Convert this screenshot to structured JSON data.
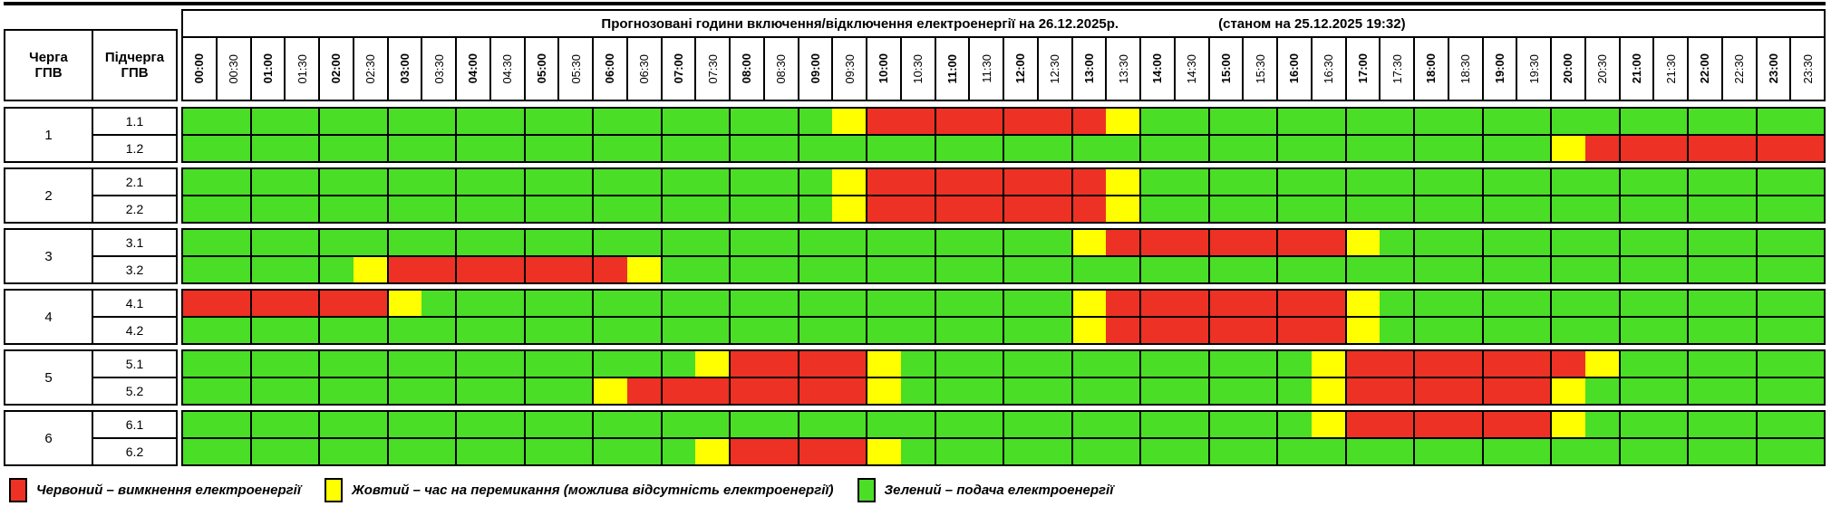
{
  "title": {
    "main": "Прогнозовані години включення/відключення електроенергії на 26.12.2025р.",
    "status": "(станом на 25.12.2025 19:32)"
  },
  "columns": {
    "queue_line1": "Черга",
    "queue_line2": "ГПВ",
    "subqueue_line1": "Підчерга",
    "subqueue_line2": "ГПВ"
  },
  "times": [
    "00:00",
    "00:30",
    "01:00",
    "01:30",
    "02:00",
    "02:30",
    "03:00",
    "03:30",
    "04:00",
    "04:30",
    "05:00",
    "05:30",
    "06:00",
    "06:30",
    "07:00",
    "07:30",
    "08:00",
    "08:30",
    "09:00",
    "09:30",
    "10:00",
    "10:30",
    "11:00",
    "11:30",
    "12:00",
    "12:30",
    "13:00",
    "13:30",
    "14:00",
    "14:30",
    "15:00",
    "15:30",
    "16:00",
    "16:30",
    "17:00",
    "17:30",
    "18:00",
    "18:30",
    "19:00",
    "19:30",
    "20:00",
    "20:30",
    "21:00",
    "21:30",
    "22:00",
    "22:30",
    "23:00",
    "23:30"
  ],
  "groups": [
    {
      "queue": "1",
      "rows": [
        {
          "label": "1.1",
          "slots": "GGGGGGGGGGGGGGGGGGGYRRRRRRRYGGGGGGGGGGGGGGGGGGGG"
        },
        {
          "label": "1.2",
          "slots": "GGGGGGGGGGGGGGGGGGGGGGGGGGGGGGGGGGGGGGGGYRRRRRRR"
        }
      ]
    },
    {
      "queue": "2",
      "rows": [
        {
          "label": "2.1",
          "slots": "GGGGGGGGGGGGGGGGGGGYRRRRRRRYGGGGGGGGGGGGGGGGGGGG"
        },
        {
          "label": "2.2",
          "slots": "GGGGGGGGGGGGGGGGGGGYRRRRRRRYGGGGGGGGGGGGGGGGGGGG"
        }
      ]
    },
    {
      "queue": "3",
      "rows": [
        {
          "label": "3.1",
          "slots": "GGGGGGGGGGGGGGGGGGGGGGGGGGYRRRRRRRYGGGGGGGGGGGGG"
        },
        {
          "label": "3.2",
          "slots": "GGGGGYRRRRRRRYGGGGGGGGGGGGGGGGGGGGGGGGGGGGGGGGGG"
        }
      ]
    },
    {
      "queue": "4",
      "rows": [
        {
          "label": "4.1",
          "slots": "RRRRRRYGGGGGGGGGGGGGGGGGGGYRRRRRRRYGGGGGGGGGGGGG"
        },
        {
          "label": "4.2",
          "slots": "GGGGGGGGGGGGGGGGGGGGGGGGGGYRRRRRRRYGGGGGGGGGGGGG"
        }
      ]
    },
    {
      "queue": "5",
      "rows": [
        {
          "label": "5.1",
          "slots": "GGGGGGGGGGGGGGGYRRRRYGGGGGGGGGGGGYRRRRRRRYGGGGGG"
        },
        {
          "label": "5.2",
          "slots": "GGGGGGGGGGGGYRRRRRRRYGGGGGGGGGGGGYRRRRRRYGGGGGGG"
        }
      ]
    },
    {
      "queue": "6",
      "rows": [
        {
          "label": "6.1",
          "slots": "GGGGGGGGGGGGGGGGGGGGGGGGGGGGGGGGGYRRRRRRYGGGGGGG"
        },
        {
          "label": "6.2",
          "slots": "GGGGGGGGGGGGGGGYRRRRYGGGGGGGGGGGGGGGGGGGGGGGGGGG"
        }
      ]
    }
  ],
  "legend": {
    "items": [
      {
        "color": "red",
        "text": "Червоний – вимкнення електроенергії"
      },
      {
        "color": "yellow",
        "text": "Жовтий – час на перемикання (можлива відсутність електроенергії)"
      },
      {
        "color": "green",
        "text": "Зелений – подача електроенергії"
      }
    ]
  },
  "colors": {
    "red": "#ed3125",
    "yellow": "#ffff00",
    "green": "#4ade27"
  }
}
